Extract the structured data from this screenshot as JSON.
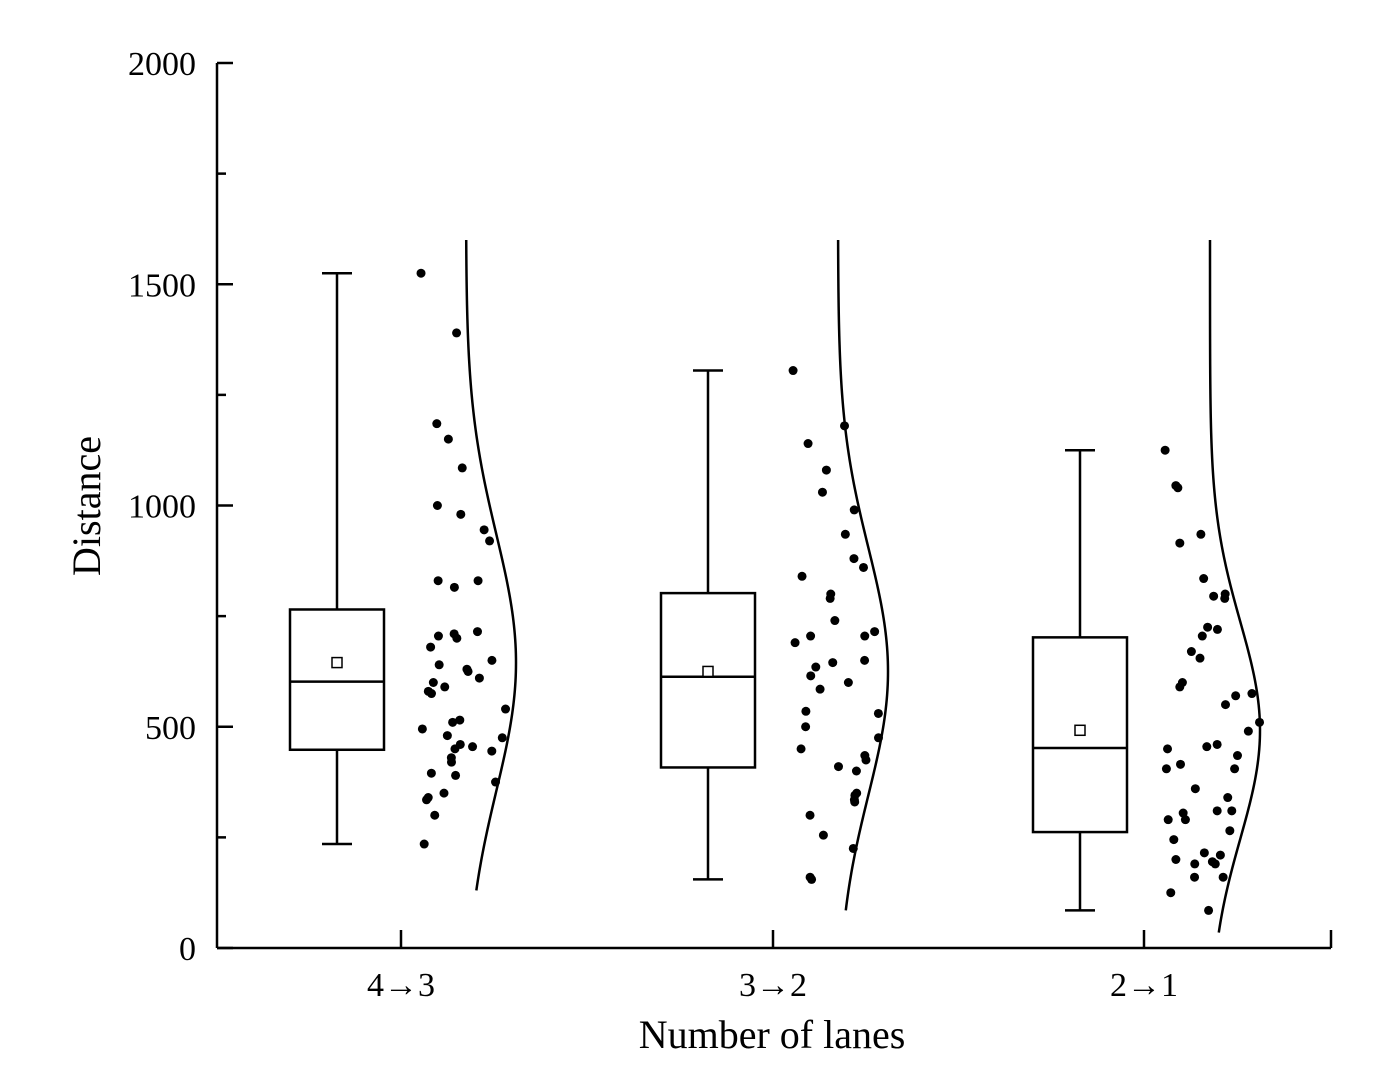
{
  "chart_data": {
    "type": "box",
    "xlabel": "Number of lanes",
    "ylabel": "Distance",
    "ylim": [
      0,
      2000
    ],
    "yticks": [
      0,
      500,
      1000,
      1500,
      2000
    ],
    "categories": [
      "4→3",
      "3→2",
      "2→1"
    ],
    "grid": false,
    "legend": "none",
    "colors": {
      "ink": "#000000",
      "mean_marker_fill": "#ffffff"
    },
    "boxes": [
      {
        "category": "4→3",
        "whisker_low": 235,
        "q1": 448,
        "median": 602,
        "q3": 765,
        "whisker_high": 1525,
        "mean": 645
      },
      {
        "category": "3→2",
        "whisker_low": 155,
        "q1": 408,
        "median": 613,
        "q3": 802,
        "whisker_high": 1305,
        "mean": 625
      },
      {
        "category": "2→1",
        "whisker_low": 85,
        "q1": 262,
        "median": 452,
        "q3": 702,
        "whisker_high": 1125,
        "mean": 492
      }
    ],
    "distribution_curves": [
      {
        "category": "4→3",
        "mean": 645,
        "sd": 290,
        "range": [
          130,
          1600
        ]
      },
      {
        "category": "3→2",
        "mean": 625,
        "sd": 280,
        "range": [
          85,
          1600
        ]
      },
      {
        "category": "2→1",
        "mean": 492,
        "sd": 245,
        "range": [
          35,
          1600
        ]
      }
    ],
    "points": [
      {
        "category": "4→3",
        "values": [
          1525,
          1390,
          1185,
          1150,
          1085,
          1000,
          980,
          945,
          920,
          830,
          830,
          815,
          715,
          710,
          705,
          700,
          680,
          650,
          640,
          630,
          625,
          610,
          600,
          590,
          580,
          575,
          540,
          515,
          510,
          495,
          480,
          475,
          460,
          455,
          450,
          445,
          430,
          420,
          395,
          390,
          375,
          350,
          340,
          335,
          300,
          235
        ]
      },
      {
        "category": "3→2",
        "values": [
          1305,
          1180,
          1140,
          1080,
          1030,
          990,
          935,
          880,
          860,
          840,
          800,
          790,
          740,
          715,
          705,
          705,
          690,
          650,
          645,
          635,
          615,
          600,
          585,
          535,
          530,
          500,
          475,
          450,
          435,
          425,
          410,
          400,
          350,
          345,
          335,
          330,
          300,
          255,
          225,
          160,
          155
        ]
      },
      {
        "category": "2→1",
        "values": [
          1125,
          1045,
          1040,
          935,
          915,
          835,
          800,
          795,
          790,
          725,
          720,
          705,
          670,
          655,
          600,
          590,
          575,
          570,
          550,
          510,
          490,
          460,
          455,
          450,
          435,
          415,
          405,
          405,
          360,
          340,
          310,
          310,
          305,
          290,
          290,
          265,
          245,
          215,
          210,
          200,
          195,
          190,
          190,
          160,
          160,
          125,
          85
        ]
      }
    ]
  }
}
